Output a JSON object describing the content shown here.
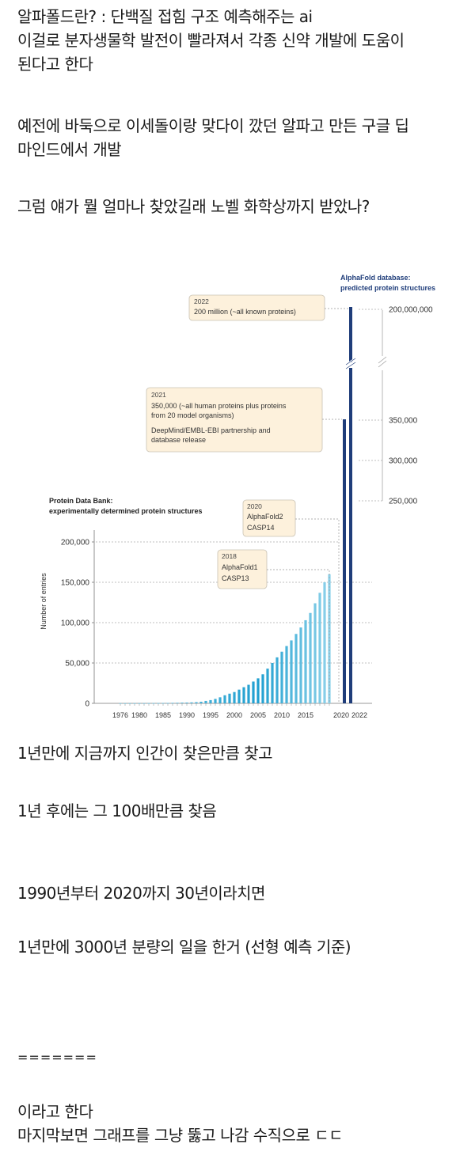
{
  "post": {
    "paragraphs": [
      [
        "알파폴드란? : 단백질 접힘 구조 예측해주는 ai",
        "이걸로 분자생물학 발전이 빨라져서 각종 신약 개발에 도움이",
        "된다고 한다"
      ],
      [
        "예전에 바둑으로 이세돌이랑 맞다이 깠던 알파고 만든 구글 딥",
        "마인드에서 개발"
      ],
      [
        "그럼 얘가 뭘 얼마나 찾았길래 노벨 화학상까지 받았나?"
      ],
      [
        "1년만에 지금까지 인간이 찾은만큼 찾고"
      ],
      [
        "1년 후에는 그 100배만큼 찾음"
      ],
      [
        "1990년부터 2020까지 30년이라치면"
      ],
      [
        "1년만에 3000년 분량의 일을 한거 (선형 예측 기준)"
      ],
      [
        "======="
      ],
      [
        "이라고 한다",
        "마지막보면 그래프를 그냥 뚫고 나감 수직으로 ㄷㄷ"
      ]
    ]
  },
  "chart_data": {
    "type": "bar",
    "ylabel": "Number of entries",
    "left_axis_ticks": [
      "0",
      "50,000",
      "100,000",
      "150,000",
      "200,000"
    ],
    "right_axis_ticks": [
      "250,000",
      "300,000",
      "350,000",
      "200,000,000"
    ],
    "x_ticks": [
      "1976",
      "1980",
      "1985",
      "1990",
      "1995",
      "2000",
      "2005",
      "2010",
      "2015",
      "2020",
      "2022"
    ],
    "series": [
      {
        "name": "Protein Data Bank: experimentally determined protein structures",
        "x": [
          1976,
          1977,
          1978,
          1979,
          1980,
          1981,
          1982,
          1983,
          1984,
          1985,
          1986,
          1987,
          1988,
          1989,
          1990,
          1991,
          1992,
          1993,
          1994,
          1995,
          1996,
          1997,
          1998,
          1999,
          2000,
          2001,
          2002,
          2003,
          2004,
          2005,
          2006,
          2007,
          2008,
          2009,
          2010,
          2011,
          2012,
          2013,
          2014,
          2015,
          2016,
          2017,
          2018,
          2019,
          2020
        ],
        "values": [
          100,
          110,
          130,
          150,
          170,
          200,
          250,
          300,
          350,
          400,
          500,
          600,
          700,
          900,
          1000,
          1200,
          1500,
          2000,
          3000,
          4000,
          5500,
          7500,
          10000,
          12000,
          14000,
          17000,
          20000,
          23000,
          27000,
          31000,
          36000,
          43000,
          50000,
          57000,
          64000,
          71000,
          78000,
          86000,
          94000,
          103000,
          112000,
          124000,
          137000,
          150000,
          160000
        ]
      },
      {
        "name": "AlphaFold database: predicted protein structures",
        "x": [
          2021,
          2022
        ],
        "values": [
          350000,
          200000000
        ]
      }
    ],
    "annotations": [
      {
        "lines": [
          "2022",
          "200 million (~all known proteins)"
        ]
      },
      {
        "lines": [
          "2021",
          "350,000 (~all human proteins plus proteins",
          "from 20 model organisms)",
          "DeepMind/EMBL-EBI partnership and",
          "database release"
        ]
      },
      {
        "lines": [
          "2020",
          "AlphaFold2",
          "CASP14"
        ]
      },
      {
        "lines": [
          "2018",
          "AlphaFold1",
          "CASP13"
        ]
      }
    ],
    "legend_texts": {
      "pdb": [
        "Protein Data Bank:",
        "experimentally determined protein structures"
      ],
      "afdb": [
        "AlphaFold database:",
        "predicted protein structures"
      ]
    },
    "colors": {
      "pdb_light": "#a9def0",
      "pdb_dark": "#1f9fd0",
      "afdb": "#1f3d7a",
      "annotation_fill": "#fdf1dc",
      "annotation_border": "#c9c2b4"
    }
  }
}
